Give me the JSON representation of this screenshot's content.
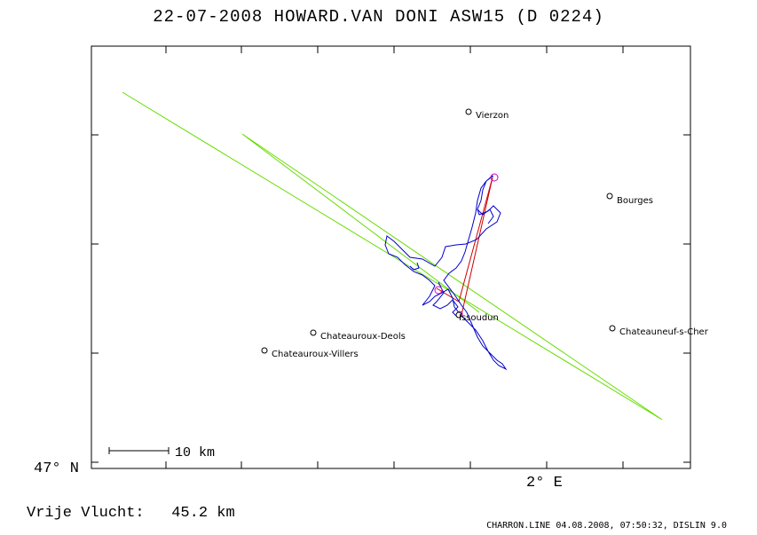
{
  "title": "22-07-2008   HOWARD.VAN DONI   ASW15 (D 0224)",
  "axes": {
    "lat_label": "47° N",
    "lon_label": "2° E"
  },
  "scale_bar": {
    "label": "10 km"
  },
  "places": [
    {
      "id": "vierzon",
      "name": "Vierzon"
    },
    {
      "id": "bourges",
      "name": "Bourges"
    },
    {
      "id": "issoudun",
      "name": "Issoudun"
    },
    {
      "id": "chateauroux-deols",
      "name": "Chateauroux-Deols"
    },
    {
      "id": "chateauroux-villers",
      "name": "Chateauroux-Villers"
    },
    {
      "id": "chateauneuf",
      "name": "Chateauneuf-s-Cher"
    }
  ],
  "footer": {
    "free_flight_label": "Vrije Vlucht:",
    "free_flight_value": "45.2 km",
    "credits": "CHARRON.LINE 04.08.2008, 07:50:32, DISLIN 9.0"
  },
  "colors": {
    "frame": "#000000",
    "track": "#0000cc",
    "task": "#cc0000",
    "turnpoint": "#cc00cc",
    "airspace": "#66dd00"
  }
}
